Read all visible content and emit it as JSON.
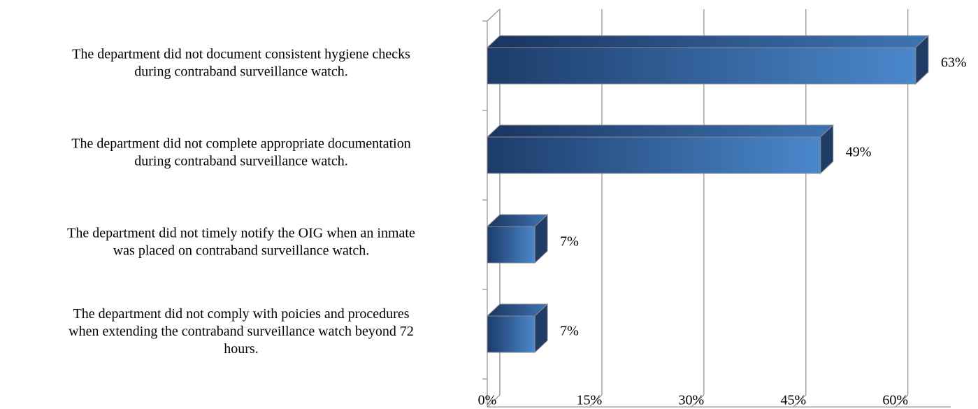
{
  "chart_data": {
    "type": "bar3d_horizontal",
    "categories": [
      "The department did not document consistent hygiene checks\nduring contraband surveillance watch.",
      "The department did not complete appropriate documentation\nduring contraband surveillance watch.",
      "The department did not timely notify the OIG when an inmate\nwas placed on contraband surveillance watch.",
      "The department did not comply with poicies and procedures\nwhen extending the contraband surveillance watch beyond 72\nhours."
    ],
    "values": [
      63,
      49,
      7,
      7
    ],
    "value_labels": [
      "63%",
      "49%",
      "7%",
      "7%"
    ],
    "color": "#3a6eb0",
    "xlim": [
      0,
      70
    ],
    "xticks": [
      {
        "value": 0,
        "label": "0%"
      },
      {
        "value": 15,
        "label": "15%"
      },
      {
        "value": 30,
        "label": "30%"
      },
      {
        "value": 45,
        "label": "45%"
      },
      {
        "value": 60,
        "label": "60%"
      }
    ],
    "grid": true
  }
}
